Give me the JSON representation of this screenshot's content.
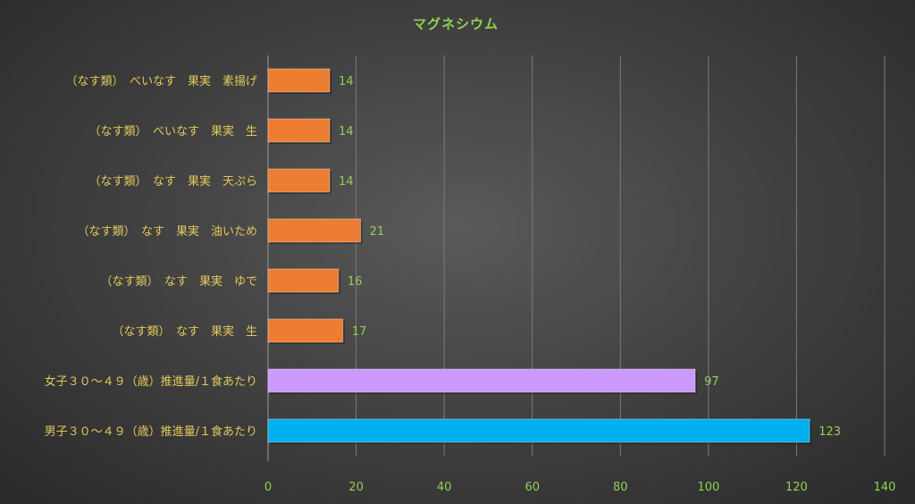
{
  "chart_data": {
    "type": "bar",
    "orientation": "horizontal",
    "title": "マグネシウム",
    "xlabel": "",
    "ylabel": "",
    "xlim": [
      0,
      140
    ],
    "x_ticks": [
      0,
      20,
      40,
      60,
      80,
      100,
      120,
      140
    ],
    "grid": true,
    "legend": "none",
    "categories": [
      "（なす類）　べいなす　果実　素揚げ",
      "（なす類）　べいなす　果実　生",
      "（なす類）　なす　果実　天ぷら",
      "（なす類）　なす　果実　油いため",
      "（なす類）　なす　果実　ゆで",
      "（なす類）　なす　果実　生",
      "女子３０～４９（歳）推進量/１食あたり",
      "男子３０～４９（歳）推進量/１食あたり"
    ],
    "values": [
      14,
      14,
      14,
      21,
      16,
      17,
      97,
      123
    ],
    "data_labels": [
      "14",
      "14",
      "14",
      "21",
      "16",
      "17",
      "97",
      "123"
    ],
    "colors": [
      "#ed7d31",
      "#ed7d31",
      "#ed7d31",
      "#ed7d31",
      "#ed7d31",
      "#ed7d31",
      "#cc99ff",
      "#00b0f0"
    ]
  }
}
